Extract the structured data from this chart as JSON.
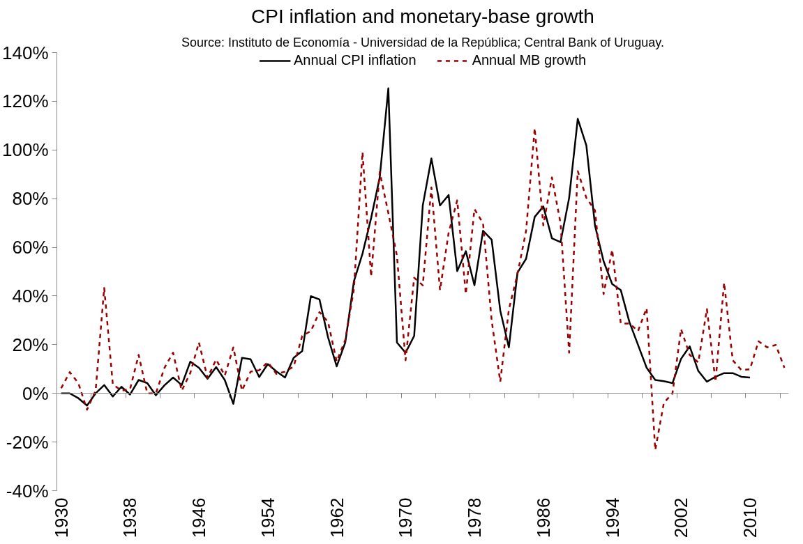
{
  "chart_data": {
    "type": "line",
    "title": "CPI inflation and monetary-base growth",
    "subtitle": "Source: Instituto de Economía - Universidad de la República; Central Bank of Uruguay.",
    "x": [
      1930,
      1931,
      1932,
      1933,
      1934,
      1935,
      1936,
      1937,
      1938,
      1939,
      1940,
      1941,
      1942,
      1943,
      1944,
      1945,
      1946,
      1947,
      1948,
      1949,
      1950,
      1951,
      1952,
      1953,
      1954,
      1955,
      1956,
      1957,
      1958,
      1959,
      1960,
      1961,
      1962,
      1963,
      1964,
      1965,
      1966,
      1967,
      1968,
      1969,
      1970,
      1971,
      1972,
      1973,
      1974,
      1975,
      1976,
      1977,
      1978,
      1979,
      1980,
      1981,
      1982,
      1983,
      1984,
      1985,
      1986,
      1987,
      1988,
      1989,
      1990,
      1991,
      1992,
      1993,
      1994,
      1995,
      1996,
      1997,
      1998,
      1999,
      2000,
      2001,
      2002,
      2003,
      2004,
      2005,
      2006,
      2007,
      2008,
      2009,
      2010,
      2011,
      2012,
      2013,
      2014
    ],
    "series": [
      {
        "name": "Annual CPI inflation",
        "color": "#000000",
        "line_style": "solid",
        "x": [
          1930,
          1931,
          1932,
          1933,
          1934,
          1935,
          1936,
          1937,
          1938,
          1939,
          1940,
          1941,
          1942,
          1943,
          1944,
          1945,
          1946,
          1947,
          1948,
          1949,
          1950,
          1951,
          1952,
          1953,
          1954,
          1955,
          1956,
          1957,
          1958,
          1959,
          1960,
          1961,
          1962,
          1963,
          1964,
          1965,
          1966,
          1967,
          1968,
          1969,
          1970,
          1971,
          1972,
          1973,
          1974,
          1975,
          1976,
          1977,
          1978,
          1979,
          1980,
          1981,
          1982,
          1983,
          1984,
          1985,
          1986,
          1987,
          1988,
          1989,
          1990,
          1991,
          1992,
          1993,
          1994,
          1995,
          1996,
          1997,
          1998,
          1999,
          2000,
          2001,
          2002,
          2003,
          2004,
          2005,
          2006,
          2007,
          2008,
          2009,
          2010
        ],
        "values": [
          0,
          0,
          -2,
          -5,
          0,
          3.4,
          -1.3,
          2.7,
          -0.5,
          5.5,
          4.2,
          -0.8,
          3.3,
          6.5,
          3.4,
          13,
          10.5,
          6,
          10.8,
          5.5,
          -4.3,
          14.6,
          14,
          6.7,
          12,
          9,
          6.5,
          14.6,
          17.4,
          39.9,
          38.6,
          23,
          11.1,
          20.9,
          46,
          57.4,
          72,
          88.7,
          125.3,
          20.9,
          16.7,
          23.6,
          77.2,
          96.5,
          77.2,
          81.5,
          50.2,
          58.4,
          44.4,
          66.8,
          63.1,
          34,
          18.9,
          49.6,
          55.3,
          72.5,
          76.8,
          63.7,
          62.1,
          80.3,
          112.8,
          101.8,
          69,
          54.3,
          44.9,
          42.4,
          29.3,
          19.9,
          10.5,
          5.5,
          5,
          4.2,
          14.2,
          19.3,
          9.2,
          4.8,
          6.8,
          8.3,
          8.3,
          6.8,
          6.5
        ]
      },
      {
        "name": "Annual MB growth",
        "color": "#990000",
        "line_style": "dashed",
        "values": [
          2.1,
          8.7,
          4.2,
          -6.7,
          1.1,
          43.3,
          3.7,
          1.1,
          1.7,
          15.8,
          0,
          0,
          10.5,
          16.7,
          1.1,
          8.4,
          20.9,
          6.4,
          13.9,
          7.3,
          18.9,
          1.1,
          8.9,
          9.5,
          12.8,
          8,
          8.9,
          11,
          23.6,
          25.6,
          33.4,
          29.3,
          13.1,
          22,
          42.8,
          99.1,
          48,
          90.9,
          74.1,
          56.5,
          13.6,
          47.5,
          44.4,
          84.6,
          42.4,
          65.9,
          79.3,
          40.8,
          75.7,
          69.9,
          30,
          4.8,
          34.5,
          49,
          66.8,
          109,
          69,
          88.7,
          69.9,
          16.7,
          91.3,
          80.3,
          75.2,
          40.8,
          59,
          28.7,
          28.7,
          25.6,
          35,
          -23.3,
          -3.9,
          0,
          26.4,
          15.8,
          12.7,
          34.6,
          4.8,
          45.5,
          13.6,
          9.6,
          9.9,
          21.4,
          18.9,
          19.9,
          10.5
        ]
      }
    ],
    "xlim": [
      1929.5,
      2014.5
    ],
    "xticks": [
      1930,
      {
        "value": 1933.5,
        "label": null
      },
      {
        "value": 1937.5,
        "label": null
      },
      1938,
      {
        "value": 1941.5,
        "label": null
      },
      {
        "value": 1945.5,
        "label": null
      },
      1946,
      {
        "value": 1949.5,
        "label": null
      },
      {
        "value": 1953.5,
        "label": null
      },
      1954,
      {
        "value": 1957.5,
        "label": null
      },
      {
        "value": 1961.5,
        "label": null
      },
      1962,
      {
        "value": 1965.5,
        "label": null
      },
      {
        "value": 1969.5,
        "label": null
      },
      1970,
      {
        "value": 1973.5,
        "label": null
      },
      {
        "value": 1977.5,
        "label": null
      },
      1978,
      {
        "value": 1981.5,
        "label": null
      },
      {
        "value": 1985.5,
        "label": null
      },
      1986,
      {
        "value": 1989.5,
        "label": null
      },
      {
        "value": 1993.5,
        "label": null
      },
      1994,
      {
        "value": 1997.5,
        "label": null
      },
      {
        "value": 2001.5,
        "label": null
      },
      2002,
      {
        "value": 2005.5,
        "label": null
      },
      {
        "value": 2009.5,
        "label": null
      },
      2010,
      {
        "value": 2013.5,
        "label": null
      }
    ],
    "ylim": [
      -40,
      140
    ],
    "yticks": [
      {
        "value": -40,
        "label": "-40%"
      },
      {
        "value": -20,
        "label": "-20%"
      },
      {
        "value": 0,
        "label": "0%"
      },
      {
        "value": 20,
        "label": "20%"
      },
      {
        "value": 40,
        "label": "40%"
      },
      {
        "value": 60,
        "label": "60%"
      },
      {
        "value": 80,
        "label": "80%"
      },
      {
        "value": 100,
        "label": "100%"
      },
      {
        "value": 120,
        "label": "120%"
      },
      {
        "value": 140,
        "label": "140%"
      }
    ],
    "legend": "top",
    "marker": "none"
  }
}
